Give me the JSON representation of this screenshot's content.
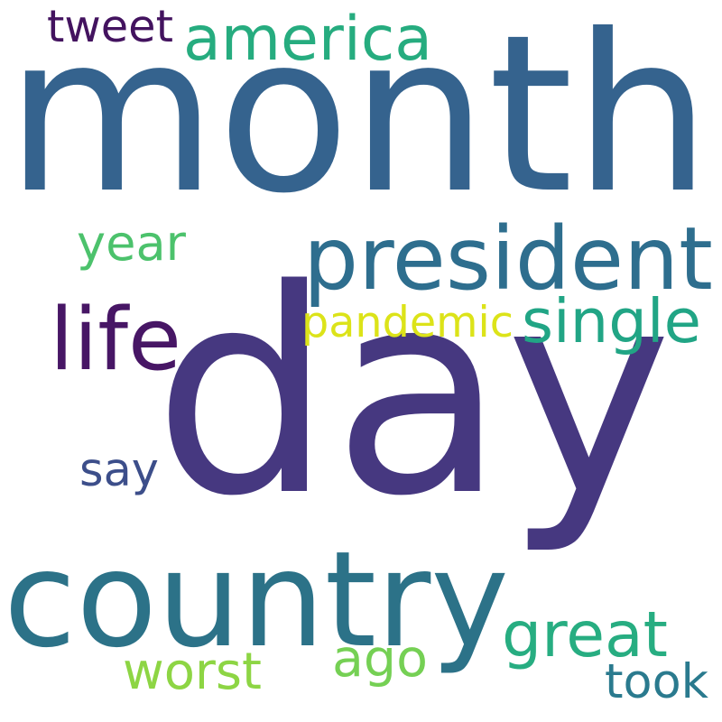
{
  "words": [
    {
      "id": "month",
      "text": "month",
      "color": "#35638e"
    },
    {
      "id": "day",
      "text": "day",
      "color": "#463880"
    },
    {
      "id": "country",
      "text": "country",
      "color": "#2c7288"
    },
    {
      "id": "president",
      "text": "president",
      "color": "#2e6e8e"
    },
    {
      "id": "america",
      "text": "america",
      "color": "#26ac7f"
    },
    {
      "id": "tweet",
      "text": "tweet",
      "color": "#43135f"
    },
    {
      "id": "year",
      "text": "year",
      "color": "#4cc26c"
    },
    {
      "id": "life",
      "text": "life",
      "color": "#471665"
    },
    {
      "id": "pandemic",
      "text": "pandemic",
      "color": "#dce319"
    },
    {
      "id": "single",
      "text": "single",
      "color": "#21a585"
    },
    {
      "id": "say",
      "text": "say",
      "color": "#3c4e8a"
    },
    {
      "id": "great",
      "text": "great",
      "color": "#27ad81"
    },
    {
      "id": "ago",
      "text": "ago",
      "color": "#75d054"
    },
    {
      "id": "worst",
      "text": "worst",
      "color": "#8dd544"
    },
    {
      "id": "took",
      "text": "took",
      "color": "#2a7a8e"
    }
  ]
}
